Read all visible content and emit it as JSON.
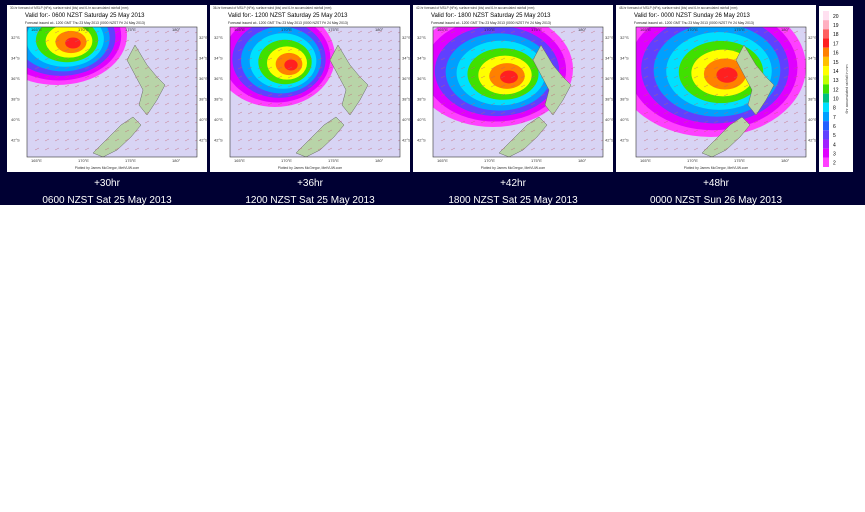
{
  "panels": [
    {
      "header": "30-hr forecast of MSLP (hPa), surface wind (kts) and 6-hr accumulated rainfall (mm)",
      "valid": "Valid for:- 0600 NZST Saturday 25 May 2013",
      "issued": "Forecast issued at:- 1200 GMT Thu 23 May 2013 (0000 NZST Fri 24 May 2013)",
      "lead": "+30hr",
      "caption": "0600 NZST Sat 25 May 2013"
    },
    {
      "header": "36-hr forecast of MSLP (hPa), surface wind (kts) and 6-hr accumulated rainfall (mm)",
      "valid": "Valid for:- 1200 NZST Saturday 25 May 2013",
      "issued": "Forecast issued at:- 1200 GMT Thu 23 May 2013 (0000 NZST Fri 24 May 2013)",
      "lead": "+36hr",
      "caption": "1200 NZST Sat 25 May 2013"
    },
    {
      "header": "42-hr forecast of MSLP (hPa), surface wind (kts) and 6-hr accumulated rainfall (mm)",
      "valid": "Valid for:- 1800 NZST Saturday 25 May 2013",
      "issued": "Forecast issued at:- 1200 GMT Thu 23 May 2013 (0000 NZST Fri 24 May 2013)",
      "lead": "+42hr",
      "caption": "1800 NZST Sat 25 May 2013"
    },
    {
      "header": "48-hr forecast of MSLP (hPa), surface wind (kts) and 6-hr accumulated rainfall (mm)",
      "valid": "Valid for:- 0000 NZST Sunday 26 May 2013",
      "issued": "Forecast issued at:- 1200 GMT Thu 23 May 2013 (0000 NZST Fri 24 May 2013)",
      "lead": "+48hr",
      "caption": "0000 NZST Sun 26 May 2013"
    }
  ],
  "map_axes": {
    "lat_labels": [
      "32°S",
      "34°S",
      "36°S",
      "38°S",
      "40°S",
      "42°S"
    ],
    "lon_labels": [
      "165°E",
      "170°E",
      "175°E",
      "180°"
    ],
    "credit": "Plotted by James McGregor, MetVUW.com"
  },
  "legend": {
    "title": "6hr accumulated rainfall in mm",
    "levels": [
      {
        "label": "20",
        "color": "#ffe0f0"
      },
      {
        "label": "19",
        "color": "#ffb0c0"
      },
      {
        "label": "18",
        "color": "#ff6060"
      },
      {
        "label": "17",
        "color": "#ff2020"
      },
      {
        "label": "16",
        "color": "#ff8000"
      },
      {
        "label": "15",
        "color": "#ffc000"
      },
      {
        "label": "14",
        "color": "#ffff00"
      },
      {
        "label": "13",
        "color": "#c0ff00"
      },
      {
        "label": "12",
        "color": "#40e000"
      },
      {
        "label": "10",
        "color": "#00c080"
      },
      {
        "label": "8",
        "color": "#00e0ff"
      },
      {
        "label": "7",
        "color": "#00a0ff"
      },
      {
        "label": "6",
        "color": "#2060ff"
      },
      {
        "label": "5",
        "color": "#6040ff"
      },
      {
        "label": "4",
        "color": "#a020ff"
      },
      {
        "label": "3",
        "color": "#e000ff"
      },
      {
        "label": "2",
        "color": "#ff40ff"
      }
    ]
  }
}
